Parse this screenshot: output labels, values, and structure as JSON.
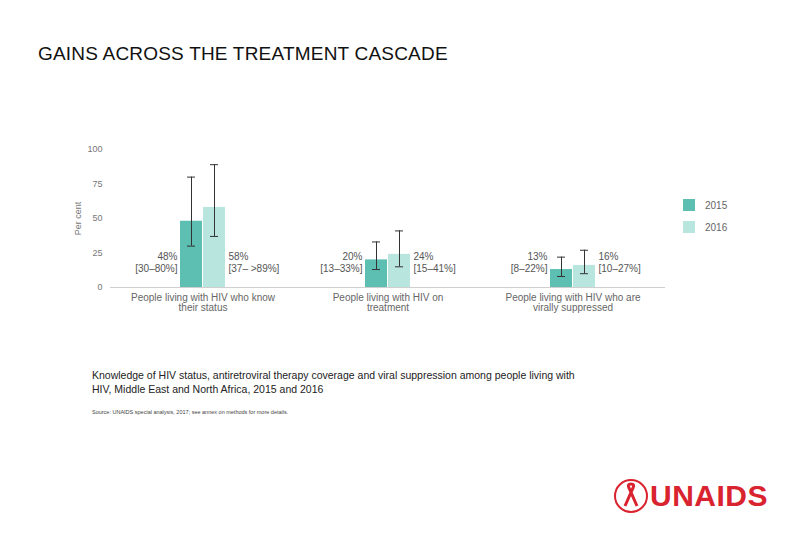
{
  "chart_data": {
    "type": "bar",
    "title": "GAINS ACROSS THE TREATMENT CASCADE",
    "y_label": "Per cent",
    "categories": [
      "People living with HIV who know their status",
      "People living with HIV on treatment",
      "People living with HIV who are virally suppressed"
    ],
    "series": [
      {
        "name": "2015",
        "color": "#5cbfb2",
        "values": [
          48,
          20,
          13
        ],
        "value_labels": [
          "48%",
          "20%",
          "13%"
        ],
        "error_low": [
          30,
          13,
          8
        ],
        "error_high": [
          80,
          33,
          22
        ],
        "error_labels": [
          "[30–80%]",
          "[13–33%]",
          "[8–22%]"
        ]
      },
      {
        "name": "2016",
        "color": "#b9e5df",
        "values": [
          58,
          24,
          16
        ],
        "value_labels": [
          "58%",
          "24%",
          "16%"
        ],
        "error_low": [
          37,
          15,
          10
        ],
        "error_high": [
          89,
          41,
          27
        ],
        "error_labels": [
          "[37– >89%]",
          "[15–41%]",
          "[10–27%]"
        ]
      }
    ],
    "ylim": [
      0,
      100
    ],
    "yticks": [
      0,
      25,
      50,
      75,
      100
    ],
    "grid": false,
    "data_labels": true,
    "legend": "right",
    "caption": "Knowledge of HIV status, antiretroviral therapy coverage and viral suppression among people living with HIV, Middle East and North Africa, 2015 and 2016",
    "source": "Source: UNAIDS special analysis, 2017; see annex on methods for more details.",
    "logo_text": "UNAIDS"
  }
}
